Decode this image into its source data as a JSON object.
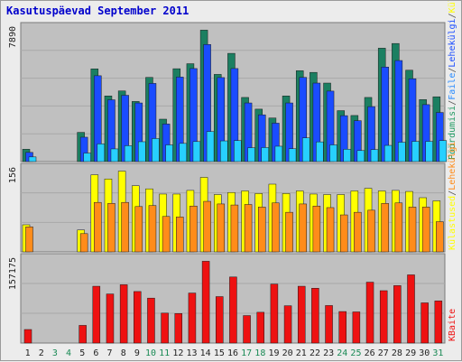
{
  "colors": {
    "page_bg": "#ececec",
    "panel_bg": "#c0c0c0",
    "grid": "#a8a8a8",
    "title": "#0000cc",
    "lbl_weekday": "#222222",
    "lbl_weekend": "#1a8a55",
    "kulastused": "#1b7f61",
    "lehed": "#1a4cff",
    "failid": "#27d0ff",
    "pooordumisi": "#1e9a62",
    "h_failid": "#2a8cff",
    "yellow": "#ffff00",
    "orange": "#ff8c1a",
    "red": "#ee1111"
  },
  "chart_data": {
    "type": "bar",
    "title": "Kasutuspäevad September 2011",
    "x": [
      1,
      2,
      3,
      4,
      5,
      6,
      7,
      8,
      9,
      10,
      11,
      12,
      13,
      14,
      15,
      16,
      17,
      18,
      19,
      20,
      21,
      22,
      23,
      24,
      25,
      26,
      27,
      28,
      29,
      30,
      31
    ],
    "weekend_days": [
      3,
      4,
      10,
      11,
      17,
      18,
      24,
      25,
      31
    ],
    "panels": [
      {
        "id": "requests",
        "ymax_label": "7890",
        "ymax": 7890,
        "series": [
          {
            "name": "Külastused",
            "color": "#1b7f61",
            "values": [
              740,
              0,
              0,
              0,
              1750,
              5550,
              3930,
              4230,
              3600,
              5040,
              2540,
              5560,
              5860,
              7870,
              5220,
              6480,
              3840,
              3140,
              2610,
              3930,
              5440,
              5340,
              4700,
              3050,
              2760,
              3840,
              6790,
              7070,
              5470,
              3710,
              3880
            ]
          },
          {
            "name": "Lehed",
            "color": "#1a4cff",
            "values": [
              550,
              0,
              0,
              0,
              1460,
              5140,
              3700,
              3970,
              3510,
              4680,
              2250,
              5060,
              5570,
              7010,
              5030,
              5570,
              3510,
              2800,
              2300,
              3510,
              5040,
              4700,
              4220,
              2750,
              2450,
              3290,
              5660,
              6050,
              4960,
              3410,
              2940
            ]
          },
          {
            "name": "Failid",
            "color": "#27d0ff",
            "values": [
              280,
              0,
              0,
              0,
              510,
              1060,
              760,
              950,
              1190,
              1380,
              1000,
              1090,
              1200,
              1800,
              1240,
              1260,
              830,
              840,
              920,
              770,
              1420,
              1180,
              1000,
              740,
              660,
              720,
              970,
              1160,
              1210,
              1210,
              1260
            ]
          }
        ]
      },
      {
        "id": "visits",
        "ymax_label": "156",
        "ymax": 156,
        "series": [
          {
            "name": "Külastused",
            "color": "#ffff00",
            "values": [
              52,
              0,
              0,
              0,
              42,
              148,
              140,
              155,
              127,
              121,
              111,
              111,
              118,
              143,
              110,
              114,
              117,
              112,
              130,
              112,
              117,
              111,
              110,
              110,
              117,
              122,
              117,
              118,
              116,
              104,
              98
            ]
          },
          {
            "name": "Lehed",
            "color": "#ff8c1a",
            "values": [
              48,
              0,
              0,
              0,
              35,
              95,
              93,
              95,
              87,
              89,
              68,
              67,
              88,
              97,
              92,
              90,
              91,
              86,
              94,
              76,
              92,
              88,
              85,
              71,
              76,
              80,
              93,
              94,
              86,
              86,
              58
            ]
          }
        ]
      },
      {
        "id": "kbytes",
        "ymax_label": "157175",
        "ymax": 157175,
        "series": [
          {
            "name": "KBaite",
            "color": "#ee1111",
            "values": [
              25900,
              0,
              0,
              0,
              33800,
              108700,
              93900,
              111600,
              98600,
              86000,
              57300,
              56500,
              95700,
              156500,
              88900,
              126400,
              52600,
              58900,
              112800,
              71400,
              108700,
              104900,
              71800,
              60300,
              59600,
              116500,
              100200,
              109900,
              130500,
              76900,
              80600
            ]
          }
        ]
      }
    ]
  },
  "right_labels": {
    "req": [
      "Pöördumisi",
      "/",
      "Faile",
      "/",
      "Lehekülgi",
      "/",
      "Külastused"
    ],
    "req_colors": [
      "#1e9a62",
      "#555555",
      "#2a8cff",
      "#555555",
      "#1a4cff",
      "#555555",
      "#ffff00"
    ],
    "visits": [
      "Külastused",
      "/",
      "Lehekülgi"
    ],
    "visits_colors": [
      "#ffff00",
      "#555555",
      "#ff8c1a"
    ],
    "kb": "KBaite",
    "kb_color": "#ee1111"
  }
}
